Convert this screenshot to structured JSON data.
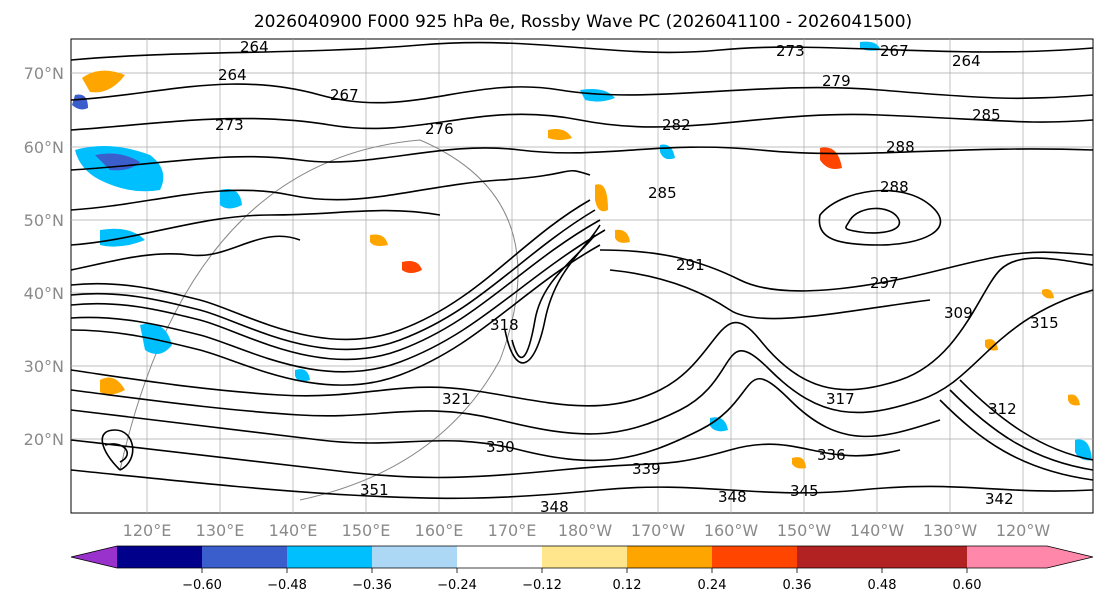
{
  "title": "2026040900 F000 925 hPa θe, Rossby Wave PC (2026041100 - 2026041500)",
  "map": {
    "lat_ticks": [
      "70°N",
      "60°N",
      "50°N",
      "40°N",
      "30°N",
      "20°N"
    ],
    "lon_ticks": [
      "120°E",
      "130°E",
      "140°E",
      "150°E",
      "160°E",
      "170°E",
      "180°W",
      "170°W",
      "160°W",
      "150°W",
      "140°W",
      "130°W",
      "120°W"
    ],
    "contour_labels": [
      "264",
      "264",
      "264",
      "267",
      "267",
      "273",
      "273",
      "276",
      "279",
      "282",
      "285",
      "285",
      "288",
      "288",
      "291",
      "297",
      "309",
      "312",
      "315",
      "317",
      "318",
      "321",
      "330",
      "336",
      "339",
      "345",
      "348",
      "348",
      "351",
      "342"
    ]
  },
  "colorbar": {
    "ticks": [
      "−0.60",
      "−0.48",
      "−0.36",
      "−0.24",
      "−0.12",
      "0.12",
      "0.24",
      "0.36",
      "0.48",
      "0.60"
    ],
    "colors": [
      "#9932cc",
      "#00008b",
      "#3a5fcd",
      "#00bfff",
      "#add8f5",
      "#ffffff",
      "#ffe68c",
      "#ffa500",
      "#ff4500",
      "#b22222",
      "#ff88aa"
    ]
  }
}
